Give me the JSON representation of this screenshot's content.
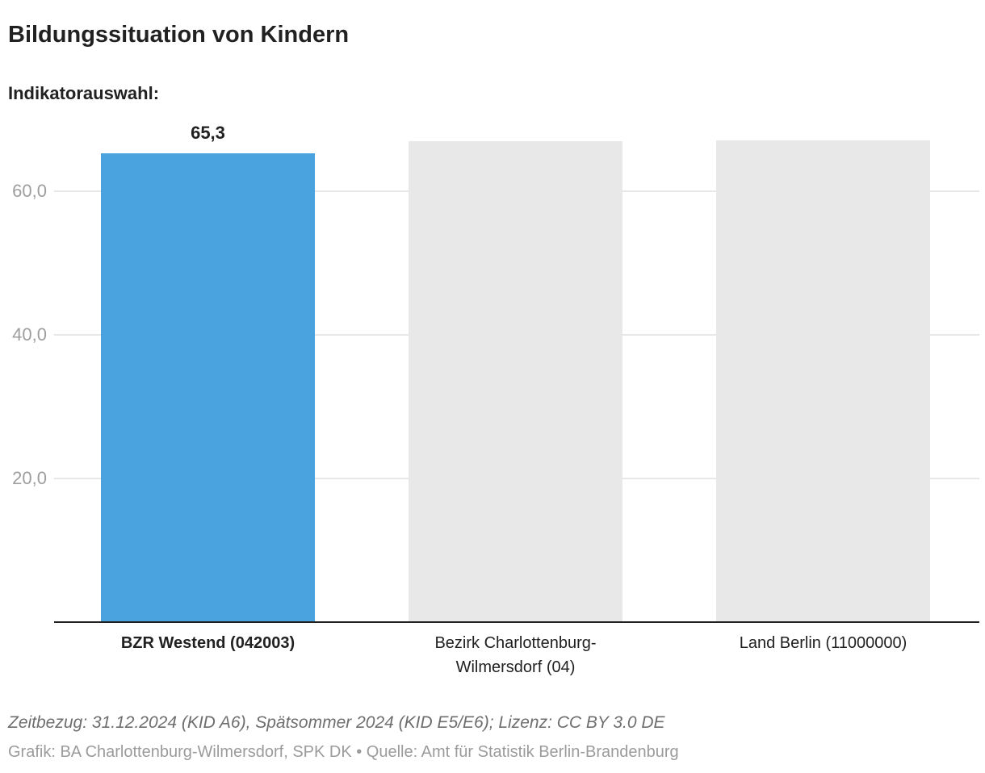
{
  "header": {
    "title": "Bildungssituation von Kindern",
    "subtitle": "Indikatorauswahl:"
  },
  "chart_data": {
    "type": "bar",
    "title": "Bildungssituation von Kindern",
    "categories": [
      "BZR Westend (042003)",
      "Bezirk Charlottenburg-Wilmersdorf (04)",
      "Land Berlin (11000000)"
    ],
    "values": [
      65.3,
      67.0,
      67.1
    ],
    "value_labels": [
      "65,3",
      "",
      ""
    ],
    "bar_colors": [
      "#4aa3de",
      "#e8e8e8",
      "#e8e8e8"
    ],
    "category_emphasis": [
      true,
      false,
      false
    ],
    "highlighted_category": "BZR Westend (042003)",
    "ylim": [
      0,
      70
    ],
    "yticks": [
      {
        "value": 20,
        "label": "20,0"
      },
      {
        "value": 40,
        "label": "40,0"
      },
      {
        "value": 60,
        "label": "60,0"
      }
    ],
    "grid": true,
    "legend": false,
    "xlabel": "",
    "ylabel": ""
  },
  "footer": {
    "line1": "Zeitbezug: 31.12.2024 (KID A6), Spätsommer 2024 (KID E5/E6); Lizenz: CC BY 3.0 DE",
    "line2": "Grafik: BA Charlottenburg-Wilmersdorf, SPK DK • Quelle: Amt für Statistik Berlin-Brandenburg"
  },
  "colors": {
    "accent_blue": "#4aa3de",
    "bar_gray": "#e8e8e8",
    "grid": "#e7e7e7",
    "axis": "#212121",
    "text_dark": "#212121",
    "tick_text": "#9e9e9e",
    "footer1": "#6e6e6e",
    "footer2": "#9b9b9b"
  }
}
